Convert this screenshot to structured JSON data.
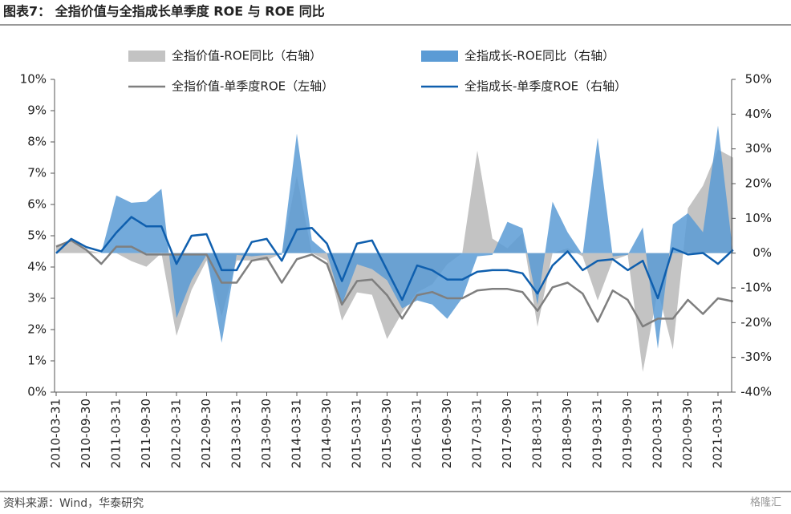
{
  "chart_data": {
    "type": "combo",
    "title": "图表7：  全指价值与全指成长单季度 ROE 与 ROE 同比",
    "source": "资料来源：Wind，华泰研究",
    "watermark": "格隆汇",
    "categories": [
      "2010-03-31",
      null,
      "2010-09-30",
      null,
      "2011-03-31",
      null,
      "2011-09-30",
      null,
      "2012-03-31",
      null,
      "2012-09-30",
      null,
      "2013-03-31",
      null,
      "2013-09-30",
      null,
      "2014-03-31",
      null,
      "2014-09-30",
      null,
      "2015-03-31",
      null,
      "2015-09-30",
      null,
      "2016-03-31",
      null,
      "2016-09-30",
      null,
      "2017-03-31",
      null,
      "2017-09-30",
      null,
      "2018-03-31",
      null,
      "2018-09-30",
      null,
      "2019-03-31",
      null,
      "2019-09-30",
      null,
      "2020-03-31",
      null,
      "2020-09-30",
      null,
      "2021-03-31",
      null
    ],
    "ylim": [
      0,
      10
    ],
    "yticks": [
      {
        "value": 0,
        "label": "0%"
      },
      {
        "value": 1,
        "label": "1%"
      },
      {
        "value": 2,
        "label": "2%"
      },
      {
        "value": 3,
        "label": "3%"
      },
      {
        "value": 4,
        "label": "4%"
      },
      {
        "value": 5,
        "label": "5%"
      },
      {
        "value": 6,
        "label": "6%"
      },
      {
        "value": 7,
        "label": "7%"
      },
      {
        "value": 8,
        "label": "8%"
      },
      {
        "value": 9,
        "label": "9%"
      },
      {
        "value": 10,
        "label": "10%"
      }
    ],
    "y2lim": [
      -40,
      50
    ],
    "y2ticks": [
      {
        "value": -40,
        "label": "-40%"
      },
      {
        "value": -30,
        "label": "-30%"
      },
      {
        "value": -20,
        "label": "-20%"
      },
      {
        "value": -10,
        "label": "-10%"
      },
      {
        "value": 0,
        "label": "0%"
      },
      {
        "value": 10,
        "label": "10%"
      },
      {
        "value": 20,
        "label": "20%"
      },
      {
        "value": 30,
        "label": "30%"
      },
      {
        "value": 40,
        "label": "40%"
      },
      {
        "value": 50,
        "label": "50%"
      }
    ],
    "series": [
      {
        "name": "全指价值-ROE同比（右轴）",
        "type": "area",
        "axis": "y2",
        "color": "#c3c3c3",
        "values": [
          2.3,
          3.7,
          0.9,
          0,
          0,
          -2.3,
          -3.9,
          0,
          -23.8,
          -10.6,
          -2.1,
          -18.2,
          -2.1,
          -2.1,
          -2.1,
          0,
          22.2,
          0,
          -2.1,
          -19.4,
          -11.3,
          -12,
          -24.7,
          -17.1,
          -11.3,
          -9,
          -3.2,
          0,
          29.5,
          4.2,
          1.4,
          5.8,
          -21.2,
          0,
          1.4,
          -0.9,
          -13.6,
          -2.1,
          -0.5,
          -34.2,
          -10.8,
          -27.7,
          12.9,
          19.4,
          29.8,
          27.5
        ]
      },
      {
        "name": "全指成长-ROE同比（右轴）",
        "type": "area",
        "axis": "y2",
        "color": "#5b9bd5",
        "values": [
          0,
          0,
          0,
          0,
          16.6,
          14.5,
          14.8,
          18.5,
          -18.7,
          -7.8,
          -0.5,
          -25.8,
          -0.5,
          -0.9,
          -0.5,
          -0.5,
          34.4,
          3.7,
          0,
          -14.8,
          -3.2,
          -4.6,
          -7.8,
          -15.9,
          -13.6,
          -14.8,
          -18.9,
          -12.9,
          -0.9,
          -0.5,
          9,
          7.2,
          -14.8,
          14.8,
          6,
          -0.5,
          33.2,
          -0.9,
          -0.5,
          7.4,
          -27.5,
          8.3,
          11.5,
          6,
          36.7,
          0
        ]
      },
      {
        "name": "全指价值-单季度ROE（左轴）",
        "type": "line",
        "axis": "y",
        "color": "#7f7f7f",
        "values": [
          4.65,
          4.85,
          4.55,
          4.1,
          4.65,
          4.65,
          4.4,
          4.4,
          4.4,
          4.4,
          4.4,
          3.5,
          3.5,
          4.2,
          4.3,
          3.5,
          4.25,
          4.4,
          4.1,
          2.8,
          3.55,
          3.6,
          3.1,
          2.35,
          3.1,
          3.2,
          3.0,
          3.0,
          3.25,
          3.3,
          3.3,
          3.2,
          2.6,
          3.35,
          3.5,
          3.15,
          2.25,
          3.25,
          2.95,
          2.1,
          2.35,
          2.35,
          2.95,
          2.5,
          3.0,
          2.9
        ]
      },
      {
        "name": "全指成长-单季度ROE（右轴）",
        "type": "line",
        "axis": "y",
        "color": "#0f5fae",
        "values": [
          4.44,
          4.9,
          4.64,
          4.5,
          5.1,
          5.6,
          5.3,
          5.3,
          4.1,
          5.0,
          5.05,
          3.9,
          3.9,
          4.8,
          4.9,
          4.2,
          5.2,
          5.25,
          4.75,
          3.55,
          4.75,
          4.85,
          3.9,
          2.95,
          4.05,
          3.9,
          3.6,
          3.6,
          3.85,
          3.9,
          3.9,
          3.8,
          3.15,
          4.05,
          4.5,
          3.9,
          4.2,
          4.25,
          3.9,
          4.2,
          3.0,
          4.6,
          4.4,
          4.45,
          4.1,
          4.55
        ]
      }
    ]
  }
}
